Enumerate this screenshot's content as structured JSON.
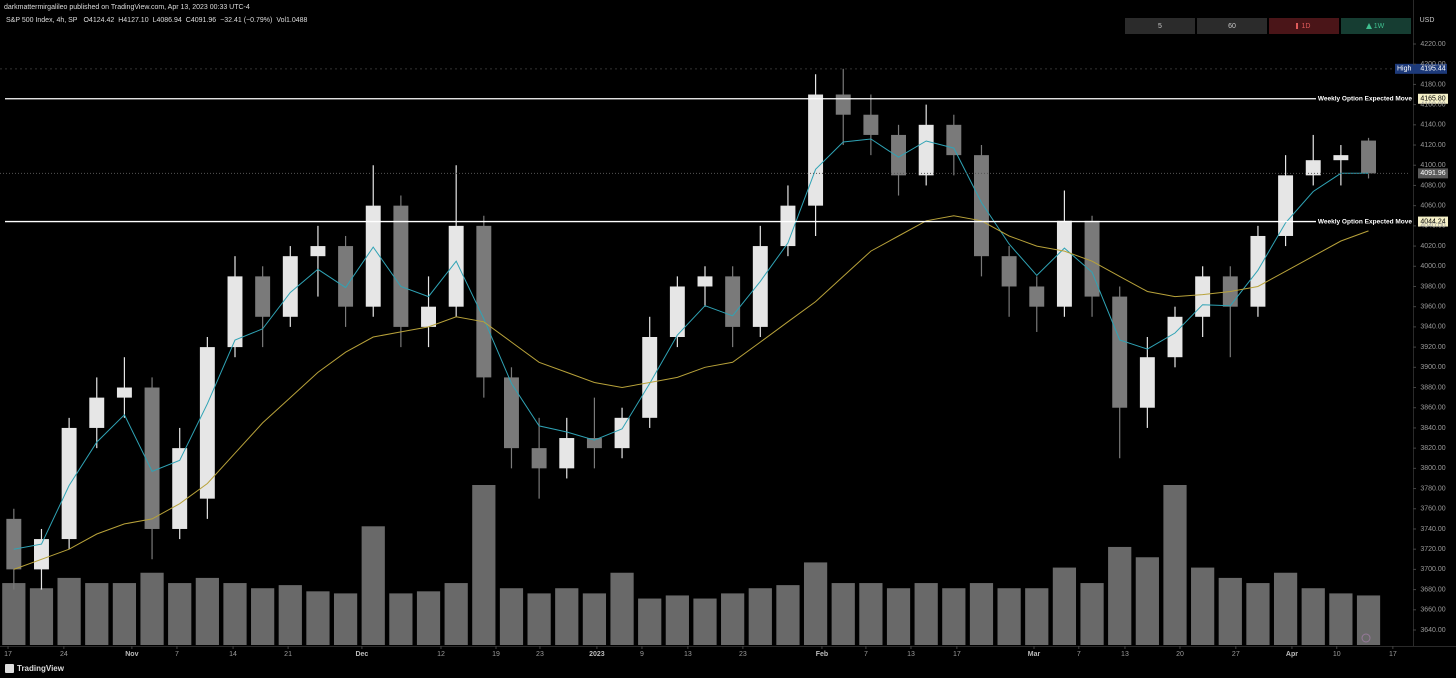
{
  "chart_data": {
    "type": "candlestick",
    "published": "darkmattermirgalileo published on TradingView.com, Apr 13, 2023 00:33 UTC-4",
    "title": "S&P 500 Index, 4h, SP",
    "readout": [
      "O4124.42",
      "H4127.10",
      "L4086.94",
      "C4091.96",
      "−32.41 (−0.79%)",
      "Vol1.0488"
    ],
    "currency": "USD",
    "intervals": [
      "5",
      "60",
      "1D",
      "1W"
    ],
    "brand": "TradingView",
    "up_color": "#e6e6e6",
    "down_color": "#7a7a7a",
    "open": [
      3750,
      3700,
      3730,
      3840,
      3870,
      3880,
      3740,
      3770,
      3920,
      3990,
      3950,
      4010,
      4020,
      3960,
      4060,
      3940,
      3960,
      4040,
      3890,
      3820,
      3800,
      3830,
      3820,
      3850,
      3930,
      3980,
      3990,
      3940,
      4020,
      4060,
      4170,
      4150,
      4130,
      4090,
      4140,
      4110,
      4010,
      3980,
      3960,
      4045,
      3970,
      3860,
      3910,
      3950,
      3990,
      3960,
      4030,
      4090,
      4105,
      4124.42
    ],
    "high": [
      3760,
      3740,
      3850,
      3890,
      3910,
      3890,
      3840,
      3930,
      4010,
      4000,
      4020,
      4040,
      4030,
      4100,
      4070,
      3990,
      4100,
      4050,
      3900,
      3850,
      3850,
      3870,
      3860,
      3950,
      3990,
      4000,
      4000,
      4040,
      4080,
      4190,
      4195.44,
      4170,
      4140,
      4160,
      4150,
      4120,
      4020,
      3990,
      4075,
      4050,
      3980,
      3930,
      3960,
      4000,
      4000,
      4040,
      4110,
      4130,
      4120,
      4127.1
    ],
    "low": [
      3680,
      3680,
      3720,
      3820,
      3850,
      3710,
      3730,
      3750,
      3910,
      3920,
      3940,
      3970,
      3940,
      3950,
      3920,
      3920,
      3950,
      3870,
      3800,
      3770,
      3790,
      3800,
      3810,
      3840,
      3920,
      3960,
      3920,
      3930,
      4010,
      4030,
      4120,
      4110,
      4070,
      4080,
      4090,
      3990,
      3950,
      3935,
      3950,
      3950,
      3810,
      3840,
      3900,
      3930,
      3910,
      3950,
      4020,
      4080,
      4080,
      4086.94
    ],
    "close": [
      3700,
      3730,
      3840,
      3870,
      3880,
      3740,
      3820,
      3920,
      3990,
      3950,
      4010,
      4020,
      3960,
      4060,
      3940,
      3960,
      4040,
      3890,
      3820,
      3800,
      3830,
      3820,
      3850,
      3930,
      3980,
      3990,
      3940,
      4020,
      4060,
      4170,
      4150,
      4130,
      4090,
      4140,
      4110,
      4010,
      3980,
      3960,
      4045,
      3970,
      3860,
      3910,
      3950,
      3990,
      3960,
      4030,
      4090,
      4105,
      4110,
      4091.96
    ],
    "volume": [
      60,
      55,
      65,
      60,
      60,
      70,
      60,
      65,
      60,
      55,
      58,
      52,
      50,
      115,
      50,
      52,
      60,
      155,
      55,
      50,
      55,
      50,
      70,
      45,
      48,
      45,
      50,
      55,
      58,
      80,
      60,
      60,
      55,
      60,
      55,
      60,
      55,
      55,
      75,
      60,
      95,
      85,
      155,
      75,
      65,
      60,
      70,
      55,
      50,
      48
    ],
    "volume_color": "#8c8c8c",
    "moving_averages": [
      {
        "color": "#2fa3b5",
        "values": [
          3720,
          3725,
          3783,
          3826,
          3853,
          3797,
          3808,
          3864,
          3927,
          3938,
          3974,
          3997,
          3979,
          4019,
          3980,
          3970,
          4005,
          3948,
          3884,
          3842,
          3836,
          3828,
          3839,
          3884,
          3932,
          3961,
          3951,
          3985,
          4023,
          4096,
          4123,
          4126,
          4108,
          4124,
          4117,
          4063,
          4022,
          3991,
          4018,
          3994,
          3927,
          3918,
          3934,
          3962,
          3961,
          3996,
          4043,
          4074,
          4092,
          4092
        ]
      },
      {
        "color": "#b8a23a",
        "values": [
          3700,
          3710,
          3720,
          3735,
          3745,
          3750,
          3765,
          3785,
          3815,
          3845,
          3870,
          3895,
          3915,
          3930,
          3935,
          3940,
          3950,
          3945,
          3925,
          3905,
          3895,
          3885,
          3880,
          3885,
          3890,
          3900,
          3905,
          3925,
          3945,
          3965,
          3990,
          4015,
          4030,
          4045,
          4050,
          4045,
          4030,
          4020,
          4015,
          4005,
          3990,
          3975,
          3970,
          3972,
          3975,
          3980,
          3995,
          4010,
          4025,
          4035
        ]
      }
    ],
    "hlines": [
      {
        "label": "Weekly Option Expected Move",
        "value": 4165.8,
        "value_label": "4165.80",
        "color": "#ffffff"
      },
      {
        "label": "Weekly Option Expected Move",
        "value": 4044.24,
        "value_label": "4044.24",
        "color": "#ffffff"
      }
    ],
    "high_marker": {
      "label": "High",
      "value": 4195.44,
      "value_label": "4195.44"
    },
    "last_price": {
      "value": 4091.96,
      "value_label": "4091.96"
    },
    "xlim": [
      -0.5,
      50.5
    ],
    "xticks": [
      {
        "value": -0.21,
        "label": "17"
      },
      {
        "value": 1.81,
        "label": "24"
      },
      {
        "value": 4.27,
        "label": "Nov"
      },
      {
        "value": 5.9,
        "label": "7"
      },
      {
        "value": 7.93,
        "label": "14"
      },
      {
        "value": 9.92,
        "label": "21"
      },
      {
        "value": 12.59,
        "label": "Dec"
      },
      {
        "value": 15.45,
        "label": "12"
      },
      {
        "value": 17.44,
        "label": "19"
      },
      {
        "value": 19.03,
        "label": "23"
      },
      {
        "value": 21.09,
        "label": "2023"
      },
      {
        "value": 22.72,
        "label": "9"
      },
      {
        "value": 24.38,
        "label": "13"
      },
      {
        "value": 26.37,
        "label": "23"
      },
      {
        "value": 29.23,
        "label": "Feb"
      },
      {
        "value": 30.82,
        "label": "7"
      },
      {
        "value": 32.45,
        "label": "13"
      },
      {
        "value": 34.11,
        "label": "17"
      },
      {
        "value": 36.9,
        "label": "Mar"
      },
      {
        "value": 38.52,
        "label": "7"
      },
      {
        "value": 40.19,
        "label": "13"
      },
      {
        "value": 42.18,
        "label": "20"
      },
      {
        "value": 44.2,
        "label": "27"
      },
      {
        "value": 46.23,
        "label": "Apr"
      },
      {
        "value": 47.85,
        "label": "10"
      },
      {
        "value": 49.88,
        "label": "17"
      }
    ],
    "ylim": [
      3640,
      4220
    ],
    "yticks": [
      {
        "value": 3640,
        "label": "3640.00"
      },
      {
        "value": 3660,
        "label": "3660.00"
      },
      {
        "value": 3680,
        "label": "3680.00"
      },
      {
        "value": 3700,
        "label": "3700.00"
      },
      {
        "value": 3720,
        "label": "3720.00"
      },
      {
        "value": 3740,
        "label": "3740.00"
      },
      {
        "value": 3760,
        "label": "3760.00"
      },
      {
        "value": 3780,
        "label": "3780.00"
      },
      {
        "value": 3800,
        "label": "3800.00"
      },
      {
        "value": 3820,
        "label": "3820.00"
      },
      {
        "value": 3840,
        "label": "3840.00"
      },
      {
        "value": 3860,
        "label": "3860.00"
      },
      {
        "value": 3880,
        "label": "3880.00"
      },
      {
        "value": 3900,
        "label": "3900.00"
      },
      {
        "value": 3920,
        "label": "3920.00"
      },
      {
        "value": 3940,
        "label": "3940.00"
      },
      {
        "value": 3960,
        "label": "3960.00"
      },
      {
        "value": 3980,
        "label": "3980.00"
      },
      {
        "value": 4000,
        "label": "4000.00"
      },
      {
        "value": 4020,
        "label": "4020.00"
      },
      {
        "value": 4040,
        "label": "4040.00"
      },
      {
        "value": 4060,
        "label": "4060.00"
      },
      {
        "value": 4080,
        "label": "4080.00"
      },
      {
        "value": 4100,
        "label": "4100.00"
      },
      {
        "value": 4120,
        "label": "4120.00"
      },
      {
        "value": 4140,
        "label": "4140.00"
      },
      {
        "value": 4160,
        "label": "4160.00"
      },
      {
        "value": 4180,
        "label": "4180.00"
      },
      {
        "value": 4200,
        "label": "4200.00"
      },
      {
        "value": 4220,
        "label": "4220.00"
      }
    ],
    "grid": false
  }
}
